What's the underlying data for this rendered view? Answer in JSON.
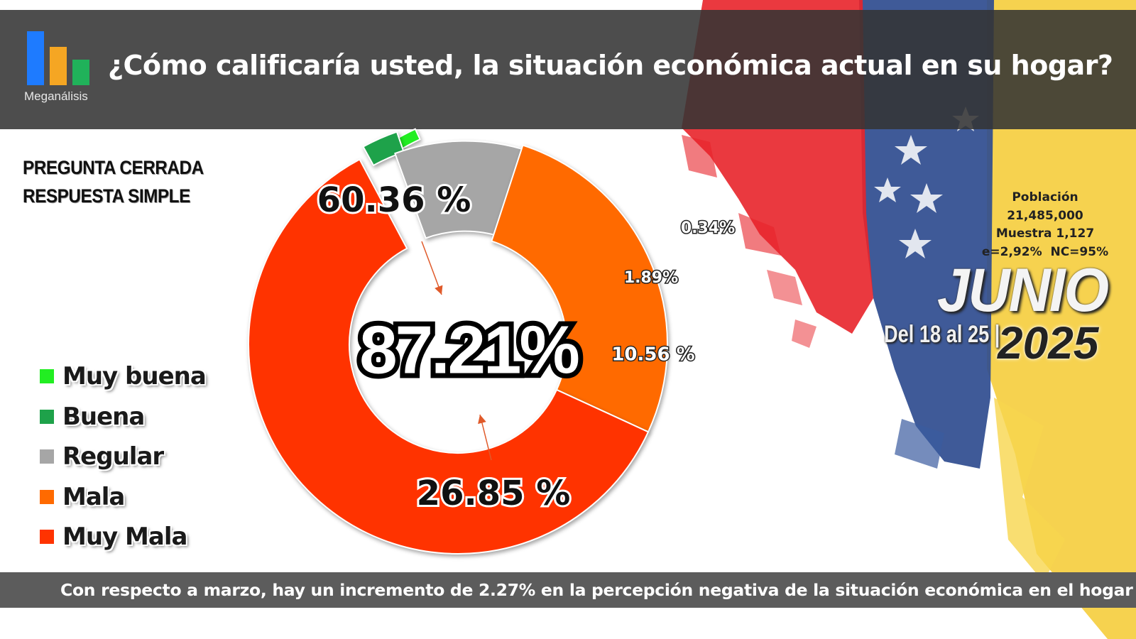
{
  "header": {
    "logo_text": "Meganálisis",
    "title": "¿Cómo calificaría usted, la situación económica actual en su hogar?"
  },
  "question_type": {
    "line1": "PREGUNTA CERRADA",
    "line2": "RESPUESTA SIMPLE"
  },
  "study_info": {
    "poblacion_label": "Población",
    "poblacion_value": "21,485,000",
    "muestra": "Muestra 1,127",
    "error": "e=2,92%  NC=95%",
    "month": "JUNIO",
    "dates": "Del 18 al 25 |",
    "year": "2025"
  },
  "footer": {
    "text": "Con respecto a marzo, hay un incremento de 2.27% en la percepción negativa de la situación económica en el hogar"
  },
  "colors": {
    "muy_buena": "#22ee22",
    "buena": "#1ea24a",
    "regular": "#a6a6a6",
    "mala": "#ff6a00",
    "muy_mala": "#ff3300",
    "header_bg": "#343434",
    "footer_bg": "#5c5c5c"
  },
  "chart_data": {
    "type": "pie",
    "subtype": "donut",
    "categories": [
      "Muy buena",
      "Buena",
      "Regular",
      "Mala",
      "Muy Mala"
    ],
    "values": [
      0.34,
      1.89,
      10.56,
      26.85,
      60.36
    ],
    "data_labels": [
      "0.34%",
      "1.89%",
      "10.56 %",
      "26.85 %",
      "60.36 %"
    ],
    "center_label": "87.21%",
    "legend_position": "left",
    "exploded": [
      "Muy buena",
      "Buena",
      "Regular"
    ]
  }
}
